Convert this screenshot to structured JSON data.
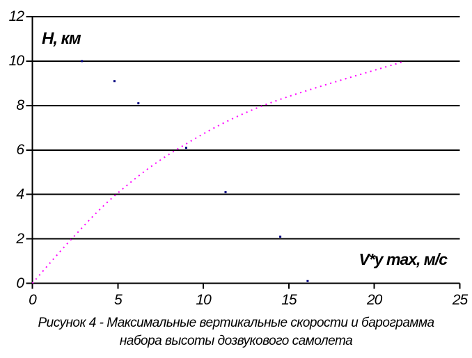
{
  "chart_data": {
    "type": "line",
    "title": "Рисунок 4 - Максимальные вертикальные скорости и барограмма набора высоты дозвукового самолета",
    "xlabel": "V*y max, м/с",
    "ylabel": "Н, км",
    "xlim": [
      0,
      25
    ],
    "ylim": [
      0,
      12
    ],
    "x_ticks": [
      0,
      5,
      10,
      15,
      20,
      25
    ],
    "y_ticks": [
      0,
      2,
      4,
      6,
      8,
      10,
      12
    ],
    "grid": "horizontal",
    "legend": "none",
    "series": [
      {
        "name": "барограмма набора высоты",
        "style": "dotted-line",
        "color": "#ff00ff",
        "points": [
          [
            0,
            0
          ],
          [
            2.3,
            2
          ],
          [
            4.9,
            4
          ],
          [
            8.4,
            6
          ],
          [
            13.5,
            8
          ],
          [
            21.8,
            10
          ]
        ]
      },
      {
        "name": "максимальные вертикальные скорости",
        "style": "scatter",
        "color": "#000080",
        "points": [
          [
            2.9,
            10.0
          ],
          [
            4.8,
            9.1
          ],
          [
            6.2,
            8.1
          ],
          [
            9.0,
            6.1
          ],
          [
            11.3,
            4.1
          ],
          [
            14.5,
            2.1
          ],
          [
            16.1,
            0.1
          ]
        ]
      }
    ]
  },
  "caption": {
    "line1": "Рисунок 4 - Максимальные вертикальные скорости и барограмма",
    "line2": "набора высоты дозвукового самолета"
  },
  "colors": {
    "axis": "#000000",
    "barogram": "#ff00ff",
    "scatter": "#000080",
    "background": "#ffffff"
  }
}
